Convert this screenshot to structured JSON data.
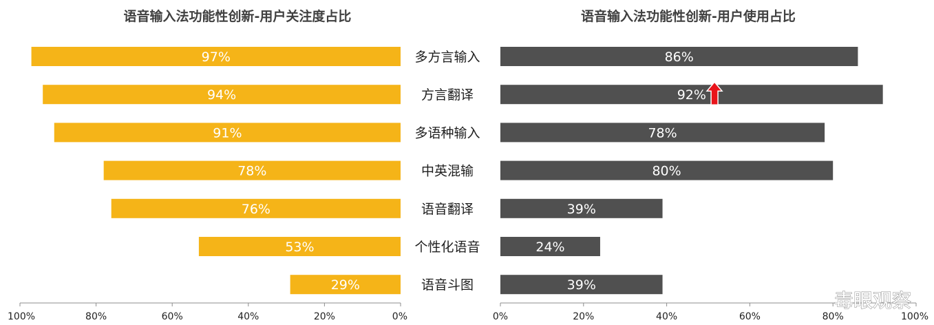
{
  "chart_data": [
    {
      "type": "bar",
      "orientation": "horizontal",
      "direction": "right-to-left",
      "title": "语音输入法功能性创新-用户关注度占比",
      "categories": [
        "多方言输入",
        "方言翻译",
        "多语种输入",
        "中英混输",
        "语音翻译",
        "个性化语音",
        "语音斗图"
      ],
      "values": [
        97,
        94,
        91,
        78,
        76,
        53,
        29
      ],
      "data_labels": [
        "97%",
        "94%",
        "91%",
        "78%",
        "76%",
        "53%",
        "29%"
      ],
      "xlim": [
        0,
        100
      ],
      "ticks": [
        100,
        80,
        60,
        40,
        20,
        0
      ],
      "tick_labels": [
        "100%",
        "80%",
        "60%",
        "40%",
        "20%",
        "0%"
      ],
      "bar_color": "#F5B418",
      "grid": false
    },
    {
      "type": "bar",
      "orientation": "horizontal",
      "direction": "left-to-right",
      "title": "语音输入法功能性创新-用户使用占比",
      "categories": [
        "多方言输入",
        "方言翻译",
        "多语种输入",
        "中英混输",
        "语音翻译",
        "个性化语音",
        "语音斗图"
      ],
      "values": [
        86,
        92,
        78,
        80,
        39,
        24,
        39
      ],
      "data_labels": [
        "86%",
        "92%",
        "78%",
        "80%",
        "39%",
        "24%",
        "39%"
      ],
      "xlim": [
        0,
        100
      ],
      "ticks": [
        0,
        20,
        40,
        60,
        80,
        100
      ],
      "tick_labels": [
        "0%",
        "20%",
        "40%",
        "60%",
        "80%",
        "100%"
      ],
      "bar_color": "#505050",
      "highlight": {
        "category": "方言翻译",
        "icon": "red-up-arrow-icon",
        "color": "#E8141B"
      },
      "grid": false
    }
  ],
  "watermark": "毒眼观察"
}
